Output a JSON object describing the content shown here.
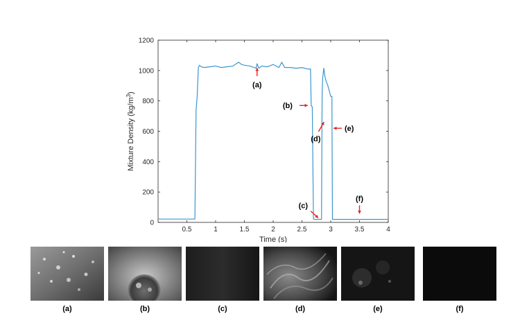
{
  "chart_data": {
    "type": "line",
    "xlabel": "Time (s)",
    "ylabel_main": "Mixture Density (kg/m",
    "ylabel_sup": "3",
    "ylabel_close": ")",
    "xlim": [
      0,
      4
    ],
    "ylim": [
      0,
      1200
    ],
    "xticks": [
      0.5,
      1,
      1.5,
      2,
      2.5,
      3,
      3.5,
      4
    ],
    "xtick_labels": [
      "0.5",
      "1",
      "1.5",
      "2",
      "2.5",
      "3",
      "3.5",
      "4"
    ],
    "yticks": [
      0,
      200,
      400,
      600,
      800,
      1000,
      1200
    ],
    "ytick_labels": [
      "0",
      "200",
      "400",
      "600",
      "800",
      "1000",
      "1200"
    ],
    "grid": false,
    "line_color": "#3a96cf",
    "annotation_color": "#e8231f",
    "series": [
      {
        "x": [
          0,
          0.5,
          0.6,
          0.64,
          0.66,
          0.68,
          0.7,
          0.72,
          0.75,
          0.8,
          0.9,
          1.0,
          1.1,
          1.2,
          1.3,
          1.4,
          1.45,
          1.5,
          1.6,
          1.7,
          1.72,
          1.75,
          1.8,
          1.9,
          2.0,
          2.1,
          2.15,
          2.2,
          2.3,
          2.4,
          2.5,
          2.6,
          2.65,
          2.66,
          2.68,
          2.7,
          2.72,
          2.8,
          2.84,
          2.85,
          2.86,
          2.88,
          2.9,
          2.92,
          2.95,
          3.0,
          3.02,
          3.03,
          3.05,
          3.1,
          3.5,
          4.0
        ],
        "y": [
          22,
          22,
          22,
          22,
          740,
          830,
          1020,
          1035,
          1025,
          1020,
          1025,
          1030,
          1020,
          1025,
          1030,
          1055,
          1040,
          1035,
          1030,
          1015,
          1045,
          1015,
          1030,
          1025,
          1040,
          1020,
          1055,
          1020,
          1020,
          1015,
          1020,
          1010,
          1010,
          770,
          760,
          22,
          20,
          20,
          20,
          850,
          950,
          1015,
          960,
          930,
          900,
          830,
          830,
          20,
          20,
          20,
          20,
          20
        ]
      }
    ],
    "annotations": [
      {
        "label": "(a)",
        "x": 1.72,
        "y": 1045
      },
      {
        "label": "(b)",
        "x": 2.65,
        "y": 770
      },
      {
        "label": "(c)",
        "x": 2.82,
        "y": 20
      },
      {
        "label": "(d)",
        "x": 2.86,
        "y": 680
      },
      {
        "label": "(e)",
        "x": 3.0,
        "y": 620
      },
      {
        "label": "(f)",
        "x": 3.5,
        "y": 30
      }
    ]
  },
  "panels": [
    {
      "label": "(a)"
    },
    {
      "label": "(b)"
    },
    {
      "label": "(c)"
    },
    {
      "label": "(d)"
    },
    {
      "label": "(e)"
    },
    {
      "label": "(f)"
    }
  ]
}
